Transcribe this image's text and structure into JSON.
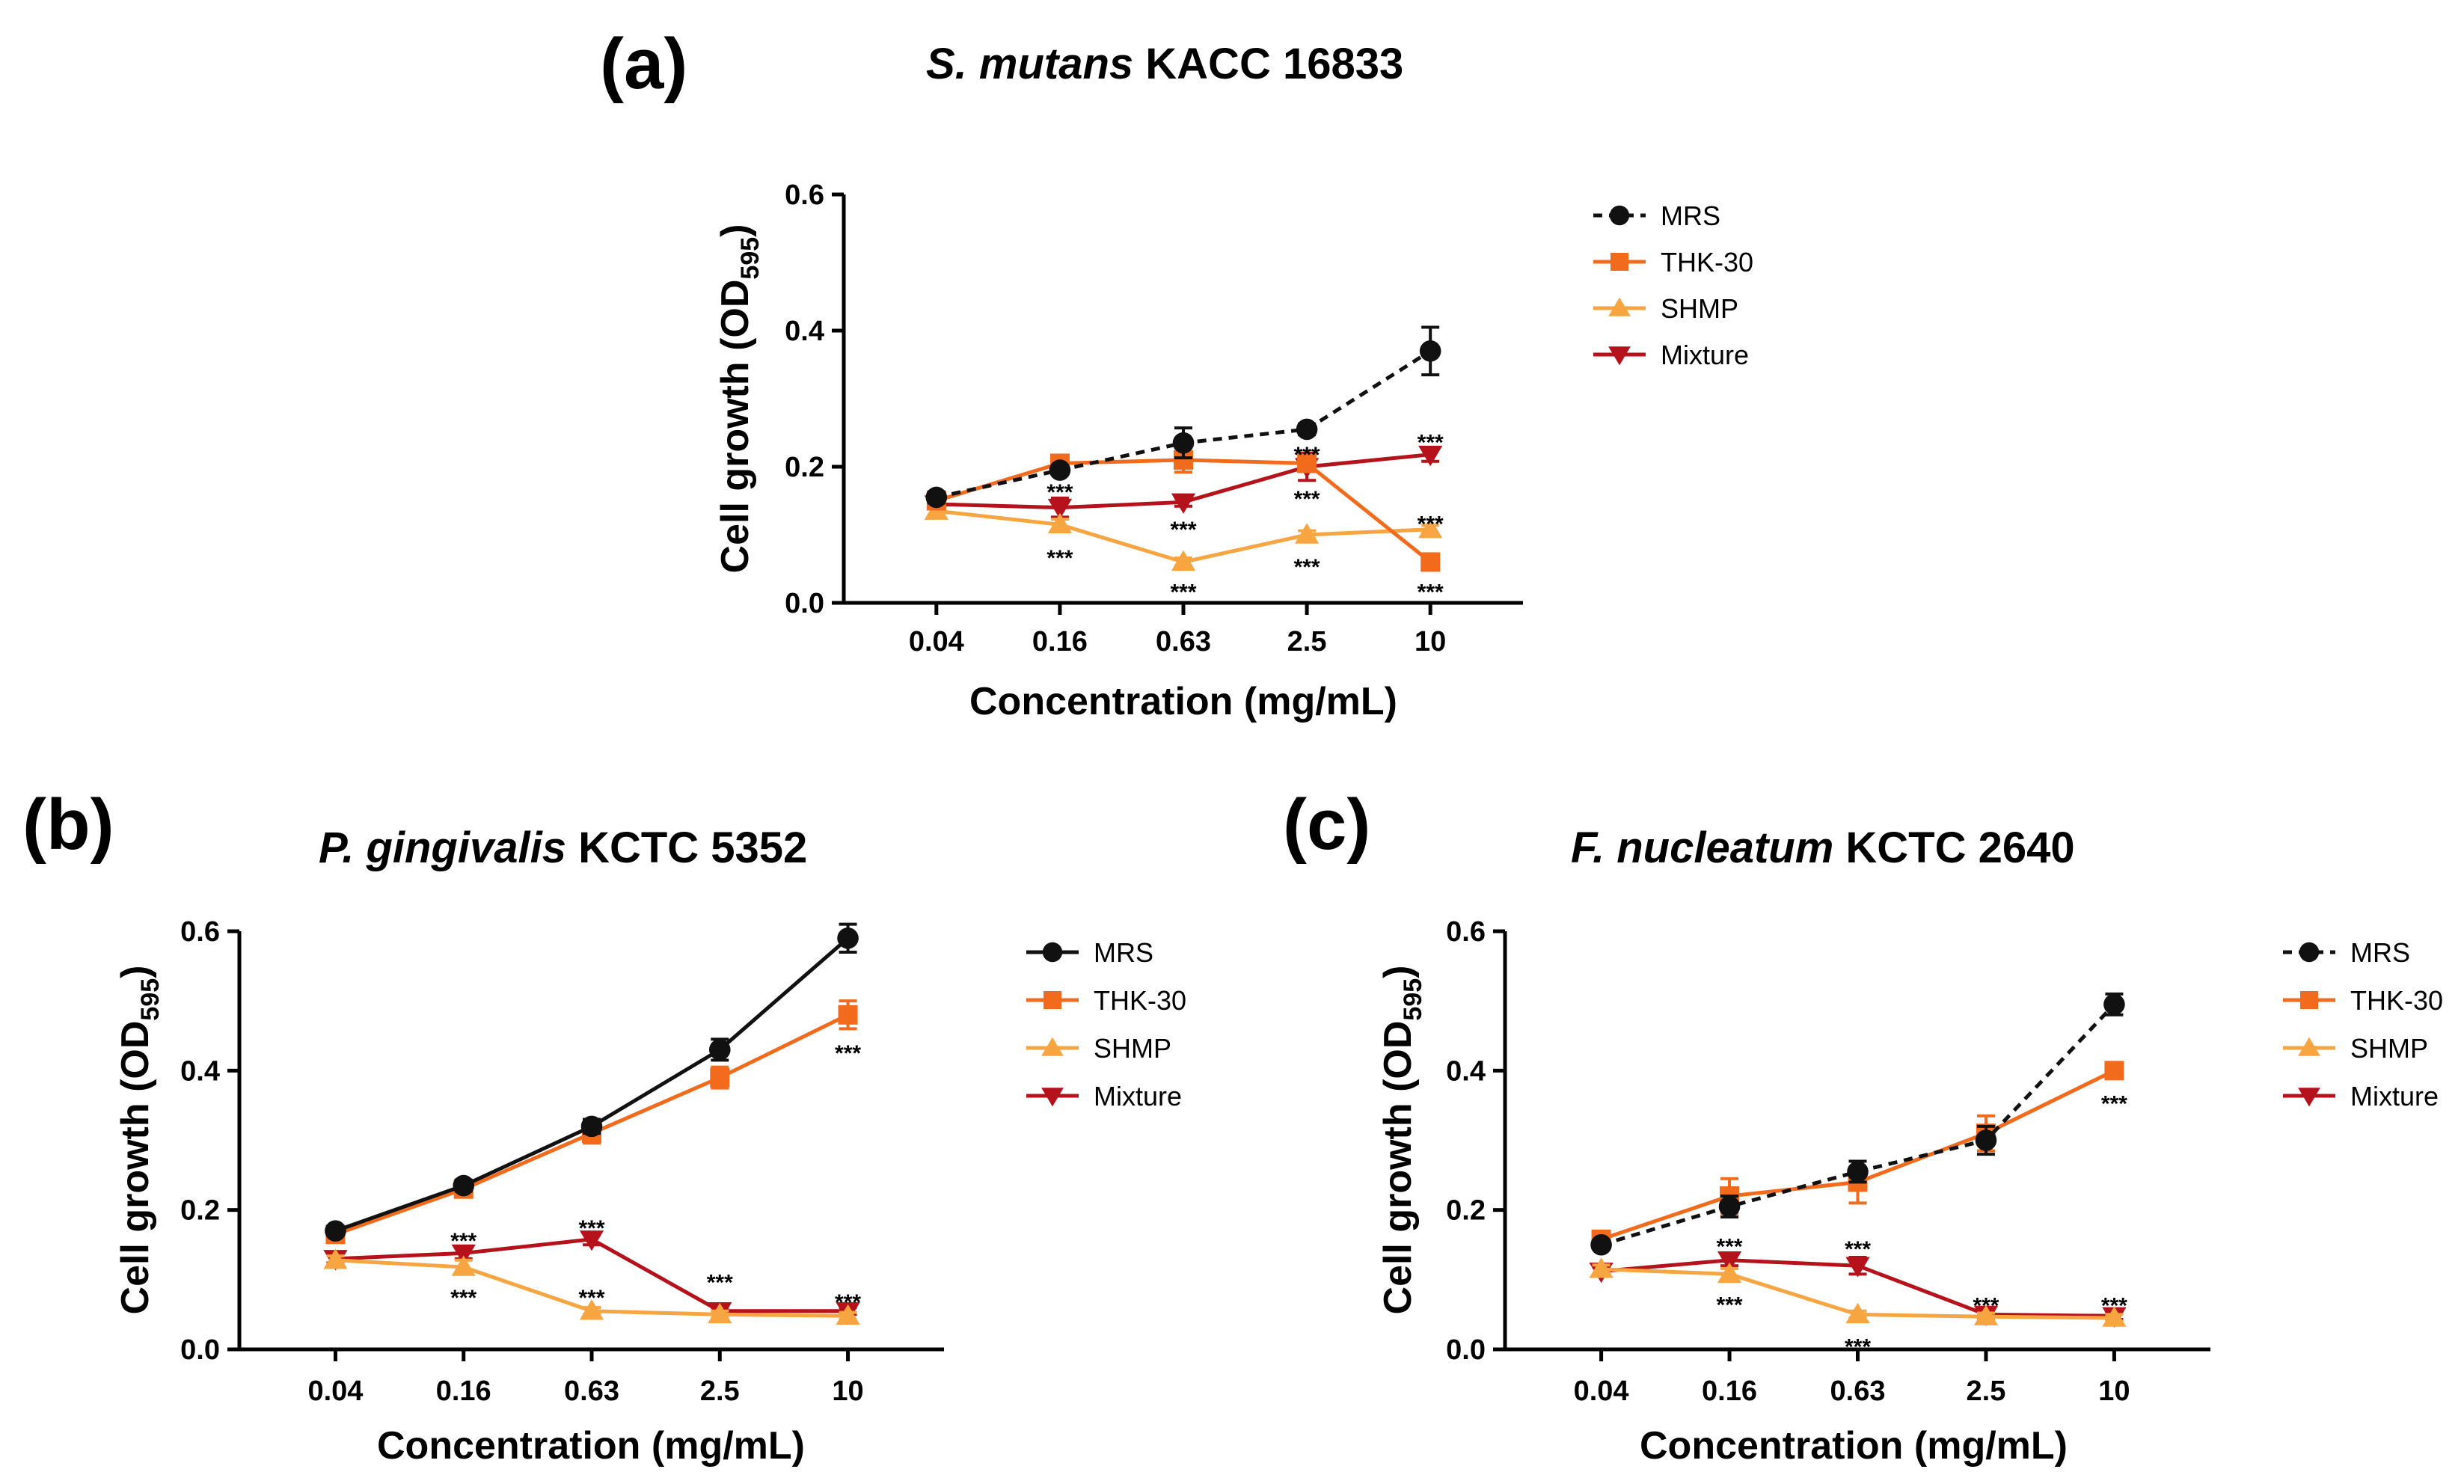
{
  "colors": {
    "MRS": "#111111",
    "THK-30": "#f26b1d",
    "SHMP": "#f7a541",
    "Mixture": "#b5121b"
  },
  "chart_data": [
    {
      "panel": "(a)",
      "type": "line",
      "title_italic": "S. mutans",
      "title_rest": " KACC 16833",
      "xlabel": "Concentration (mg/mL)",
      "ylabel_main": "Cell growth (OD",
      "ylabel_sub": "595",
      "ylabel_end": ")",
      "categories": [
        "0.04",
        "0.16",
        "0.63",
        "2.5",
        "10"
      ],
      "ylim": [
        0,
        0.6
      ],
      "yticks": [
        "0.0",
        "0.2",
        "0.4",
        "0.6"
      ],
      "series": [
        {
          "name": "MRS",
          "marker": "circle",
          "dashed": true,
          "values": [
            0.155,
            0.195,
            0.235,
            0.255,
            0.37
          ],
          "errors": [
            0.008,
            0.006,
            0.022,
            0.008,
            0.035
          ]
        },
        {
          "name": "THK-30",
          "marker": "square",
          "dashed": false,
          "values": [
            0.15,
            0.205,
            0.21,
            0.205,
            0.06
          ],
          "errors": [
            0.006,
            0.006,
            0.018,
            0.012,
            0.006
          ]
        },
        {
          "name": "SHMP",
          "marker": "triangle-up",
          "dashed": false,
          "values": [
            0.135,
            0.115,
            0.06,
            0.1,
            0.108
          ],
          "errors": [
            0.006,
            0.008,
            0.006,
            0.006,
            0.006
          ]
        },
        {
          "name": "Mixture",
          "marker": "triangle-down",
          "dashed": false,
          "values": [
            0.145,
            0.14,
            0.148,
            0.2,
            0.218
          ],
          "errors": [
            0.006,
            0.014,
            0.006,
            0.02,
            0.01
          ]
        }
      ],
      "annotations": [
        {
          "label": "***",
          "category": 1,
          "y": 0.165
        },
        {
          "label": "***",
          "category": 1,
          "y": 0.068
        },
        {
          "label": "***",
          "category": 2,
          "y": 0.11
        },
        {
          "label": "***",
          "category": 2,
          "y": 0.018
        },
        {
          "label": "***",
          "category": 3,
          "y": 0.22
        },
        {
          "label": "***",
          "category": 3,
          "y": 0.155
        },
        {
          "label": "***",
          "category": 3,
          "y": 0.055
        },
        {
          "label": "***",
          "category": 4,
          "y": 0.238
        },
        {
          "label": "***",
          "category": 4,
          "y": 0.118
        },
        {
          "label": "***",
          "category": 4,
          "y": 0.018
        }
      ],
      "legend": [
        "MRS",
        "THK-30",
        "SHMP",
        "Mixture"
      ],
      "legend_dashed_mrs": true
    },
    {
      "panel": "(b)",
      "type": "line",
      "title_italic": "P. gingivalis",
      "title_rest": " KCTC 5352",
      "xlabel": "Concentration (mg/mL)",
      "ylabel_main": "Cell growth (OD",
      "ylabel_sub": "595",
      "ylabel_end": ")",
      "categories": [
        "0.04",
        "0.16",
        "0.63",
        "2.5",
        "10"
      ],
      "ylim": [
        0,
        0.6
      ],
      "yticks": [
        "0.0",
        "0.2",
        "0.4",
        "0.6"
      ],
      "series": [
        {
          "name": "MRS",
          "marker": "circle",
          "dashed": false,
          "values": [
            0.17,
            0.235,
            0.32,
            0.43,
            0.59
          ],
          "errors": [
            0.006,
            0.008,
            0.01,
            0.015,
            0.02
          ]
        },
        {
          "name": "THK-30",
          "marker": "square",
          "dashed": false,
          "values": [
            0.165,
            0.23,
            0.31,
            0.39,
            0.48
          ],
          "errors": [
            0.006,
            0.008,
            0.014,
            0.015,
            0.02
          ]
        },
        {
          "name": "SHMP",
          "marker": "triangle-up",
          "dashed": false,
          "values": [
            0.128,
            0.118,
            0.055,
            0.05,
            0.048
          ],
          "errors": [
            0.006,
            0.01,
            0.005,
            0.005,
            0.005
          ]
        },
        {
          "name": "Mixture",
          "marker": "triangle-down",
          "dashed": false,
          "values": [
            0.13,
            0.138,
            0.158,
            0.055,
            0.055
          ],
          "errors": [
            0.006,
            0.008,
            0.008,
            0.005,
            0.005
          ]
        }
      ],
      "annotations": [
        {
          "label": "***",
          "category": 1,
          "y": 0.158
        },
        {
          "label": "***",
          "category": 1,
          "y": 0.076
        },
        {
          "label": "***",
          "category": 2,
          "y": 0.176
        },
        {
          "label": "***",
          "category": 2,
          "y": 0.076
        },
        {
          "label": "***",
          "category": 3,
          "y": 0.098
        },
        {
          "label": "***",
          "category": 4,
          "y": 0.07
        },
        {
          "label": "***",
          "category": 4,
          "y": 0.427
        }
      ],
      "legend": [
        "MRS",
        "THK-30",
        "SHMP",
        "Mixture"
      ],
      "legend_dashed_mrs": false
    },
    {
      "panel": "(c)",
      "type": "line",
      "title_italic": "F. nucleatum",
      "title_rest": " KCTC 2640",
      "xlabel": "Concentration (mg/mL)",
      "ylabel_main": "Cell growth (OD",
      "ylabel_sub": "595",
      "ylabel_end": ")",
      "categories": [
        "0.04",
        "0.16",
        "0.63",
        "2.5",
        "10"
      ],
      "ylim": [
        0,
        0.6
      ],
      "yticks": [
        "0.0",
        "0.2",
        "0.4",
        "0.6"
      ],
      "series": [
        {
          "name": "MRS",
          "marker": "circle",
          "dashed": true,
          "values": [
            0.15,
            0.205,
            0.255,
            0.3,
            0.495
          ],
          "errors": [
            0.006,
            0.015,
            0.015,
            0.02,
            0.015
          ]
        },
        {
          "name": "THK-30",
          "marker": "square",
          "dashed": false,
          "values": [
            0.158,
            0.22,
            0.24,
            0.31,
            0.4
          ],
          "errors": [
            0.006,
            0.025,
            0.03,
            0.025,
            0.006
          ]
        },
        {
          "name": "SHMP",
          "marker": "triangle-up",
          "dashed": false,
          "values": [
            0.115,
            0.108,
            0.05,
            0.047,
            0.045
          ],
          "errors": [
            0.006,
            0.008,
            0.005,
            0.005,
            0.005
          ]
        },
        {
          "name": "Mixture",
          "marker": "triangle-down",
          "dashed": false,
          "values": [
            0.112,
            0.128,
            0.12,
            0.05,
            0.048
          ],
          "errors": [
            0.006,
            0.008,
            0.012,
            0.005,
            0.005
          ]
        }
      ],
      "annotations": [
        {
          "label": "***",
          "category": 1,
          "y": 0.15
        },
        {
          "label": "***",
          "category": 1,
          "y": 0.066
        },
        {
          "label": "***",
          "category": 2,
          "y": 0.146
        },
        {
          "label": "***",
          "category": 2,
          "y": 0.006
        },
        {
          "label": "***",
          "category": 3,
          "y": 0.065
        },
        {
          "label": "***",
          "category": 4,
          "y": 0.065
        },
        {
          "label": "***",
          "category": 4,
          "y": 0.355
        }
      ],
      "legend": [
        "MRS",
        "THK-30",
        "SHMP",
        "Mixture"
      ],
      "legend_dashed_mrs": true
    }
  ]
}
